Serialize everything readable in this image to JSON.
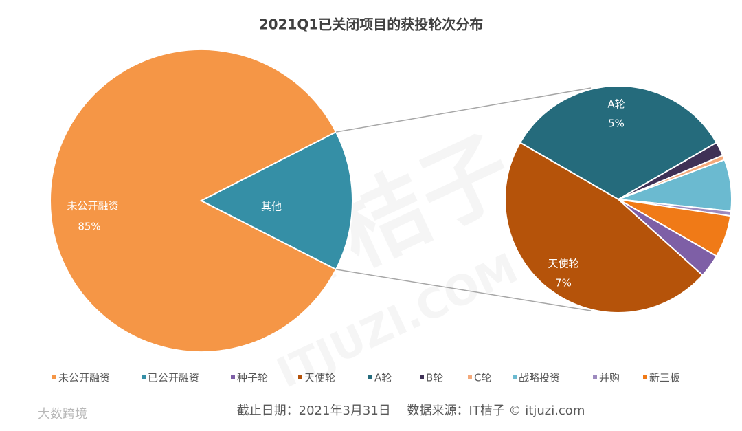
{
  "chart_data": {
    "type": "pie-of-pie",
    "title": "2021Q1已关闭项目的获投轮次分布",
    "main": {
      "categories": [
        "未公开融资",
        "其他"
      ],
      "values": [
        85,
        15
      ],
      "value_labels": [
        "85%",
        null
      ],
      "colors": [
        "#F59646",
        "#358FA6"
      ]
    },
    "detail": {
      "categories": [
        "A轮",
        "B轮",
        "C轮",
        "战略投资",
        "并购",
        "新三板",
        "种子轮",
        "天使轮"
      ],
      "values": [
        5,
        0.3,
        0.1,
        1.1,
        0.1,
        0.9,
        0.5,
        7
      ],
      "value_labels": [
        "5%",
        null,
        null,
        null,
        null,
        null,
        null,
        "7%"
      ],
      "colors": [
        "#256B7C",
        "#3F3156",
        "#F4A97A",
        "#6BBAD0",
        "#9D8ABF",
        "#F07A17",
        "#7E5FA6",
        "#B5530A"
      ]
    },
    "legend": {
      "labels": [
        "未公开融资",
        "已公开融资",
        "种子轮",
        "天使轮",
        "A轮",
        "B轮",
        "C轮",
        "战略投资",
        "并购",
        "新三板"
      ],
      "colors": [
        "#F59646",
        "#358FA6",
        "#7E5FA6",
        "#B5530A",
        "#256B7C",
        "#3F3156",
        "#F4A97A",
        "#6BBAD0",
        "#9D8ABF",
        "#F07A17"
      ]
    },
    "footnote": "截止日期：2021年3月31日　 数据来源：IT桔子 © itjuzi.com",
    "watermarks": [
      "IT桔子",
      "ITJUZI.COM",
      "大数跨境"
    ]
  }
}
